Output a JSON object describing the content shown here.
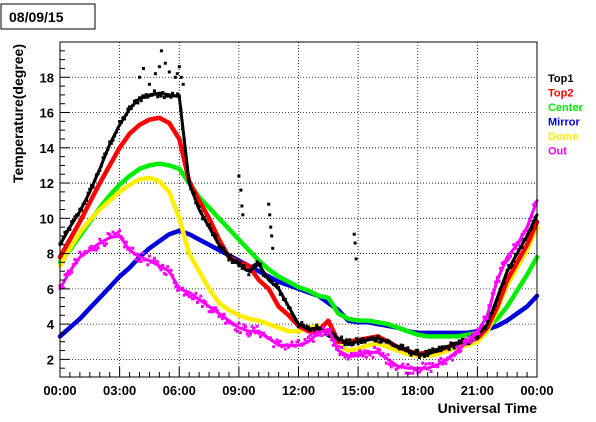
{
  "chart_data": {
    "type": "scatter",
    "title": "08/09/15",
    "xlabel": "Universal Time",
    "ylabel": "Temperature(degree)",
    "x_unit": "hours UTC",
    "xlim": [
      0,
      24
    ],
    "ylim": [
      1,
      20
    ],
    "grid": true,
    "legend_position": "right",
    "x_ticks": [
      {
        "value": 0,
        "label": "00:00"
      },
      {
        "value": 3,
        "label": "03:00"
      },
      {
        "value": 6,
        "label": "06:00"
      },
      {
        "value": 9,
        "label": "09:00"
      },
      {
        "value": 12,
        "label": "12:00"
      },
      {
        "value": 15,
        "label": "15:00"
      },
      {
        "value": 18,
        "label": "18:00"
      },
      {
        "value": 21,
        "label": "21:00"
      },
      {
        "value": 24,
        "label": "00:00"
      }
    ],
    "y_ticks": [
      {
        "value": 2,
        "label": "2"
      },
      {
        "value": 4,
        "label": "4"
      },
      {
        "value": 6,
        "label": "6"
      },
      {
        "value": 8,
        "label": "8"
      },
      {
        "value": 10,
        "label": "10"
      },
      {
        "value": 12,
        "label": "12"
      },
      {
        "value": 14,
        "label": "14"
      },
      {
        "value": 16,
        "label": "16"
      },
      {
        "value": 18,
        "label": "18"
      }
    ],
    "series": [
      {
        "name": "Top1",
        "color": "#000000",
        "x": [
          0,
          0.5,
          1,
          1.5,
          2,
          2.5,
          3,
          3.5,
          4,
          4.5,
          5,
          5.5,
          6,
          6.5,
          7,
          7.5,
          8,
          8.5,
          9,
          9.5,
          10,
          10.5,
          11,
          11.5,
          12,
          12.5,
          13,
          13.5,
          14,
          14.5,
          15,
          15.5,
          16,
          16.5,
          17,
          17.5,
          18,
          18.5,
          19,
          19.5,
          20,
          20.5,
          21,
          21.5,
          22,
          22.5,
          23,
          23.5,
          24
        ],
        "y": [
          8.5,
          9.5,
          10.4,
          11.5,
          12.8,
          14.2,
          15.3,
          16.2,
          16.8,
          17.0,
          17.1,
          17.0,
          16.9,
          12.0,
          10.5,
          9.5,
          8.5,
          7.8,
          7.4,
          7.0,
          7.4,
          6.5,
          6.0,
          5.0,
          4.0,
          3.7,
          3.8,
          3.5,
          3.2,
          2.9,
          3.0,
          3.1,
          3.2,
          3.0,
          2.7,
          2.5,
          2.3,
          2.3,
          2.5,
          2.7,
          2.9,
          3.0,
          3.3,
          4.0,
          5.5,
          7.0,
          8.0,
          9.0,
          10.2
        ]
      },
      {
        "name": "Top2",
        "color": "#ff0000",
        "x": [
          0,
          0.5,
          1,
          1.5,
          2,
          2.5,
          3,
          3.5,
          4,
          4.5,
          5,
          5.5,
          6,
          6.5,
          7,
          7.5,
          8,
          8.5,
          9,
          9.5,
          10,
          10.5,
          11,
          11.5,
          12,
          12.5,
          13,
          13.5,
          14,
          14.5,
          15,
          15.5,
          16,
          16.5,
          17,
          17.5,
          18,
          18.5,
          19,
          19.5,
          20,
          20.5,
          21,
          21.5,
          22,
          22.5,
          23,
          23.5,
          24
        ],
        "y": [
          7.8,
          8.8,
          9.8,
          10.9,
          12.0,
          13.0,
          14.0,
          14.8,
          15.3,
          15.6,
          15.7,
          15.4,
          14.5,
          12.1,
          11.0,
          10.0,
          8.8,
          7.8,
          7.5,
          7.3,
          6.5,
          6.0,
          5.0,
          4.5,
          3.9,
          3.6,
          3.6,
          4.2,
          3.0,
          3.0,
          3.1,
          3.2,
          3.3,
          3.0,
          2.7,
          2.5,
          2.3,
          2.4,
          2.5,
          2.7,
          2.9,
          3.0,
          3.2,
          3.8,
          5.0,
          6.5,
          7.5,
          8.5,
          9.8
        ]
      },
      {
        "name": "Center",
        "color": "#00ee00",
        "x": [
          0,
          0.5,
          1,
          1.5,
          2,
          2.5,
          3,
          3.5,
          4,
          4.5,
          5,
          5.5,
          6,
          6.5,
          7,
          7.5,
          8,
          8.5,
          9,
          9.5,
          10,
          10.5,
          11,
          11.5,
          12,
          12.5,
          13,
          13.5,
          14,
          14.5,
          15,
          15.5,
          16,
          16.5,
          17,
          17.5,
          18,
          18.5,
          19,
          19.5,
          20,
          20.5,
          21,
          21.5,
          22,
          22.5,
          23,
          23.5,
          24
        ],
        "y": [
          7.5,
          8.2,
          9.0,
          9.8,
          10.6,
          11.3,
          11.9,
          12.4,
          12.8,
          13.0,
          13.1,
          13.0,
          12.8,
          12.0,
          11.2,
          10.6,
          10.0,
          9.4,
          8.8,
          8.2,
          7.6,
          7.1,
          6.7,
          6.4,
          6.1,
          5.9,
          5.6,
          5.5,
          4.6,
          4.3,
          4.2,
          4.2,
          4.1,
          4.0,
          3.8,
          3.6,
          3.4,
          3.3,
          3.3,
          3.3,
          3.3,
          3.4,
          3.5,
          3.8,
          4.3,
          5.0,
          5.9,
          6.8,
          7.8
        ]
      },
      {
        "name": "Mirror",
        "color": "#0000dd",
        "x": [
          0,
          0.5,
          1,
          1.5,
          2,
          2.5,
          3,
          3.5,
          4,
          4.5,
          5,
          5.5,
          6,
          6.5,
          7,
          7.5,
          8,
          8.5,
          9,
          9.5,
          10,
          10.5,
          11,
          11.5,
          12,
          12.5,
          13,
          13.5,
          14,
          14.5,
          15,
          15.5,
          16,
          16.5,
          17,
          17.5,
          18,
          18.5,
          19,
          19.5,
          20,
          20.5,
          21,
          21.5,
          22,
          22.5,
          23,
          23.5,
          24
        ],
        "y": [
          3.3,
          3.8,
          4.3,
          4.9,
          5.5,
          6.1,
          6.7,
          7.2,
          7.8,
          8.3,
          8.7,
          9.1,
          9.3,
          9.1,
          8.8,
          8.5,
          8.2,
          7.9,
          7.6,
          7.3,
          7.0,
          6.7,
          6.4,
          6.2,
          6.0,
          5.8,
          5.6,
          5.2,
          4.8,
          4.2,
          4.1,
          4.1,
          4.0,
          3.9,
          3.8,
          3.6,
          3.5,
          3.5,
          3.5,
          3.5,
          3.5,
          3.5,
          3.6,
          3.7,
          3.9,
          4.2,
          4.6,
          5.0,
          5.6
        ]
      },
      {
        "name": "Dome",
        "color": "#ffee00",
        "x": [
          0,
          0.5,
          1,
          1.5,
          2,
          2.5,
          3,
          3.5,
          4,
          4.5,
          5,
          5.5,
          6,
          6.5,
          7,
          7.5,
          8,
          8.5,
          9,
          9.5,
          10,
          10.5,
          11,
          11.5,
          12,
          12.5,
          13,
          13.5,
          14,
          14.5,
          15,
          15.5,
          16,
          16.5,
          17,
          17.5,
          18,
          18.5,
          19,
          19.5,
          20,
          20.5,
          21,
          21.5,
          22,
          22.5,
          23,
          23.5,
          24
        ],
        "y": [
          7.3,
          8.3,
          9.2,
          9.9,
          10.5,
          11.0,
          11.5,
          11.9,
          12.2,
          12.3,
          12.1,
          11.5,
          10.0,
          8.0,
          7.0,
          6.0,
          5.2,
          4.8,
          4.5,
          4.3,
          4.2,
          4.0,
          3.8,
          3.6,
          3.6,
          3.8,
          3.9,
          3.6,
          2.8,
          2.5,
          2.6,
          2.8,
          2.9,
          2.7,
          2.5,
          2.3,
          2.2,
          2.2,
          2.3,
          2.5,
          2.7,
          2.8,
          3.0,
          3.6,
          4.8,
          6.2,
          7.2,
          8.2,
          9.5
        ]
      },
      {
        "name": "Out",
        "color": "#ff00ff",
        "x": [
          0,
          0.5,
          1,
          1.5,
          2,
          2.5,
          3,
          3.5,
          4,
          4.5,
          5,
          5.5,
          6,
          6.5,
          7,
          7.5,
          8,
          8.5,
          9,
          9.5,
          10,
          10.5,
          11,
          11.5,
          12,
          12.5,
          13,
          13.5,
          14,
          14.5,
          15,
          15.5,
          16,
          16.5,
          17,
          17.5,
          18,
          18.5,
          19,
          19.5,
          20,
          20.5,
          21,
          21.5,
          22,
          22.5,
          23,
          23.5,
          24
        ],
        "y": [
          6.0,
          7.0,
          7.8,
          8.2,
          8.6,
          8.9,
          9.0,
          8.2,
          7.8,
          7.6,
          7.3,
          7.0,
          6.0,
          5.8,
          5.4,
          5.0,
          4.6,
          4.2,
          3.8,
          3.6,
          3.6,
          3.2,
          2.8,
          2.8,
          2.8,
          3.0,
          3.5,
          3.7,
          2.5,
          2.2,
          2.2,
          2.4,
          2.4,
          2.0,
          1.6,
          1.5,
          1.5,
          1.5,
          1.7,
          2.0,
          2.5,
          3.0,
          3.5,
          4.5,
          6.5,
          7.8,
          8.5,
          9.5,
          11.0
        ]
      }
    ],
    "top1_spikes": {
      "x": [
        4.0,
        4.2,
        4.5,
        4.8,
        5.0,
        5.1,
        5.3,
        5.5,
        5.8,
        5.9,
        6.0,
        6.1,
        6.2,
        9.0,
        9.1,
        9.15,
        9.2,
        10.5,
        10.55,
        10.6,
        10.65,
        10.7,
        14.8,
        14.85,
        14.9
      ],
      "y": [
        18.0,
        18.5,
        17.6,
        18.2,
        18.6,
        19.5,
        18.8,
        18.3,
        18.0,
        18.2,
        18.6,
        18.0,
        17.6,
        12.4,
        11.6,
        10.7,
        10.2,
        10.8,
        10.2,
        9.5,
        9.0,
        8.3,
        9.1,
        8.6,
        7.7
      ]
    }
  }
}
